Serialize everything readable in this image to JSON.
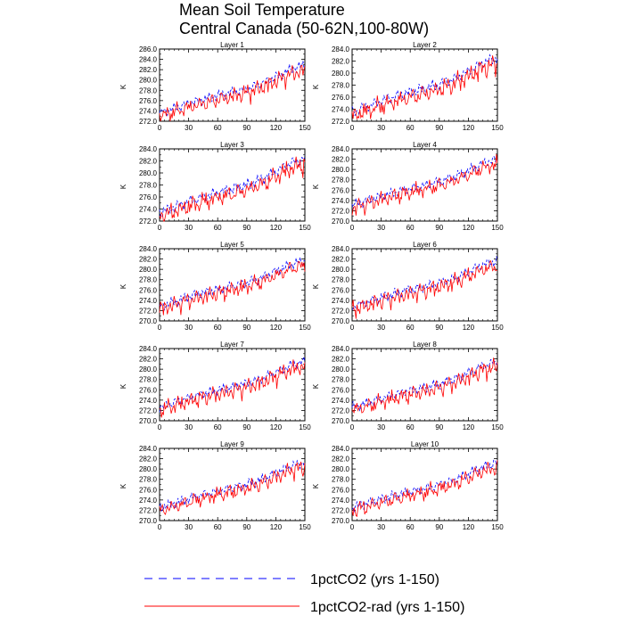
{
  "figure": {
    "title_line1": "Mean Soil Temperature",
    "title_line2": "Central Canada (50-62N,100-80W)"
  },
  "legend": [
    {
      "label": "1pctCO2 (yrs 1-150)",
      "color": "#0000ff",
      "dash": "dashed"
    },
    {
      "label": "1pctCO2-rad (yrs 1-150)",
      "color": "#ff0000",
      "dash": "solid"
    }
  ],
  "chart_data": [
    {
      "type": "line",
      "title": "Layer 1",
      "ylabel": "K",
      "xlim": [
        0,
        150
      ],
      "ylim": [
        272,
        286
      ],
      "xticks": [
        0,
        30,
        60,
        90,
        120,
        150
      ],
      "yticks": [
        272,
        274,
        276,
        278,
        280,
        282,
        284,
        286
      ],
      "series": [
        {
          "name": "1pctCO2 (yrs 1-150)",
          "color": "#0000ff",
          "x": [
            0,
            15,
            30,
            45,
            60,
            75,
            90,
            105,
            120,
            135,
            150
          ],
          "values": [
            273.6,
            274.5,
            275.4,
            276.2,
            277.0,
            277.6,
            278.3,
            279.2,
            280.6,
            282.0,
            283.0
          ]
        },
        {
          "name": "1pctCO2-rad (yrs 1-150)",
          "color": "#ff0000",
          "x": [
            0,
            15,
            30,
            45,
            60,
            75,
            90,
            105,
            120,
            135,
            150
          ],
          "values": [
            273.1,
            273.9,
            274.8,
            275.5,
            276.3,
            276.9,
            277.6,
            278.6,
            279.9,
            281.2,
            282.0
          ]
        }
      ]
    },
    {
      "type": "line",
      "title": "Layer 2",
      "ylabel": "K",
      "xlim": [
        0,
        150
      ],
      "ylim": [
        272,
        284
      ],
      "xticks": [
        0,
        30,
        60,
        90,
        120,
        150
      ],
      "yticks": [
        272,
        274,
        276,
        278,
        280,
        282,
        284
      ],
      "series": [
        {
          "name": "1pctCO2 (yrs 1-150)",
          "color": "#0000ff",
          "x": [
            0,
            15,
            30,
            45,
            60,
            75,
            90,
            105,
            120,
            135,
            150
          ],
          "values": [
            273.5,
            274.4,
            275.3,
            276.1,
            276.8,
            277.4,
            278.1,
            279.0,
            280.3,
            281.7,
            282.6
          ]
        },
        {
          "name": "1pctCO2-rad (yrs 1-150)",
          "color": "#ff0000",
          "x": [
            0,
            15,
            30,
            45,
            60,
            75,
            90,
            105,
            120,
            135,
            150
          ],
          "values": [
            273.0,
            273.8,
            274.7,
            275.4,
            276.1,
            276.7,
            277.4,
            278.3,
            279.6,
            280.9,
            281.7
          ]
        }
      ]
    },
    {
      "type": "line",
      "title": "Layer 3",
      "ylabel": "K",
      "xlim": [
        0,
        150
      ],
      "ylim": [
        272,
        284
      ],
      "xticks": [
        0,
        30,
        60,
        90,
        120,
        150
      ],
      "yticks": [
        272,
        274,
        276,
        278,
        280,
        282,
        284
      ],
      "series": [
        {
          "name": "1pctCO2 (yrs 1-150)",
          "color": "#0000ff",
          "x": [
            0,
            15,
            30,
            45,
            60,
            75,
            90,
            105,
            120,
            135,
            150
          ],
          "values": [
            273.4,
            274.3,
            275.2,
            276.0,
            276.7,
            277.3,
            278.0,
            278.9,
            280.2,
            281.6,
            282.4
          ]
        },
        {
          "name": "1pctCO2-rad (yrs 1-150)",
          "color": "#ff0000",
          "x": [
            0,
            15,
            30,
            45,
            60,
            75,
            90,
            105,
            120,
            135,
            150
          ],
          "values": [
            272.9,
            273.7,
            274.6,
            275.3,
            276.0,
            276.6,
            277.3,
            278.2,
            279.5,
            280.8,
            281.6
          ]
        }
      ]
    },
    {
      "type": "line",
      "title": "Layer 4",
      "ylabel": "K",
      "xlim": [
        0,
        150
      ],
      "ylim": [
        270,
        284
      ],
      "xticks": [
        0,
        30,
        60,
        90,
        120,
        150
      ],
      "yticks": [
        270,
        272,
        274,
        276,
        278,
        280,
        282,
        284
      ],
      "series": [
        {
          "name": "1pctCO2 (yrs 1-150)",
          "color": "#0000ff",
          "x": [
            0,
            15,
            30,
            45,
            60,
            75,
            90,
            105,
            120,
            135,
            150
          ],
          "values": [
            273.0,
            273.9,
            274.8,
            275.6,
            276.3,
            276.9,
            277.6,
            278.5,
            279.8,
            281.2,
            282.0
          ]
        },
        {
          "name": "1pctCO2-rad (yrs 1-150)",
          "color": "#ff0000",
          "x": [
            0,
            15,
            30,
            45,
            60,
            75,
            90,
            105,
            120,
            135,
            150
          ],
          "values": [
            272.6,
            273.4,
            274.3,
            275.0,
            275.7,
            276.3,
            277.0,
            277.9,
            279.1,
            280.4,
            281.2
          ]
        }
      ]
    },
    {
      "type": "line",
      "title": "Layer 5",
      "ylabel": "K",
      "xlim": [
        0,
        150
      ],
      "ylim": [
        270,
        284
      ],
      "xticks": [
        0,
        30,
        60,
        90,
        120,
        150
      ],
      "yticks": [
        270,
        272,
        274,
        276,
        278,
        280,
        282,
        284
      ],
      "series": [
        {
          "name": "1pctCO2 (yrs 1-150)",
          "color": "#0000ff",
          "x": [
            0,
            15,
            30,
            45,
            60,
            75,
            90,
            105,
            120,
            135,
            150
          ],
          "values": [
            272.8,
            273.7,
            274.6,
            275.4,
            276.1,
            276.7,
            277.4,
            278.3,
            279.6,
            280.9,
            281.7
          ]
        },
        {
          "name": "1pctCO2-rad (yrs 1-150)",
          "color": "#ff0000",
          "x": [
            0,
            15,
            30,
            45,
            60,
            75,
            90,
            105,
            120,
            135,
            150
          ],
          "values": [
            272.4,
            273.2,
            274.1,
            274.8,
            275.5,
            276.1,
            276.8,
            277.7,
            278.9,
            280.2,
            280.9
          ]
        }
      ]
    },
    {
      "type": "line",
      "title": "Layer 6",
      "ylabel": "K",
      "xlim": [
        0,
        150
      ],
      "ylim": [
        270,
        284
      ],
      "xticks": [
        0,
        30,
        60,
        90,
        120,
        150
      ],
      "yticks": [
        270,
        272,
        274,
        276,
        278,
        280,
        282,
        284
      ],
      "series": [
        {
          "name": "1pctCO2 (yrs 1-150)",
          "color": "#0000ff",
          "x": [
            0,
            15,
            30,
            45,
            60,
            75,
            90,
            105,
            120,
            135,
            150
          ],
          "values": [
            272.7,
            273.6,
            274.5,
            275.3,
            276.0,
            276.6,
            277.3,
            278.2,
            279.5,
            280.8,
            281.6
          ]
        },
        {
          "name": "1pctCO2-rad (yrs 1-150)",
          "color": "#ff0000",
          "x": [
            0,
            15,
            30,
            45,
            60,
            75,
            90,
            105,
            120,
            135,
            150
          ],
          "values": [
            272.3,
            273.1,
            274.0,
            274.7,
            275.4,
            276.0,
            276.7,
            277.6,
            278.8,
            280.1,
            280.8
          ]
        }
      ]
    },
    {
      "type": "line",
      "title": "Layer 7",
      "ylabel": "K",
      "xlim": [
        0,
        150
      ],
      "ylim": [
        270,
        284
      ],
      "xticks": [
        0,
        30,
        60,
        90,
        120,
        150
      ],
      "yticks": [
        270,
        272,
        274,
        276,
        278,
        280,
        282,
        284
      ],
      "series": [
        {
          "name": "1pctCO2 (yrs 1-150)",
          "color": "#0000ff",
          "x": [
            0,
            15,
            30,
            45,
            60,
            75,
            90,
            105,
            120,
            135,
            150
          ],
          "values": [
            272.6,
            273.5,
            274.4,
            275.2,
            275.9,
            276.5,
            277.2,
            278.1,
            279.4,
            280.7,
            281.5
          ]
        },
        {
          "name": "1pctCO2-rad (yrs 1-150)",
          "color": "#ff0000",
          "x": [
            0,
            15,
            30,
            45,
            60,
            75,
            90,
            105,
            120,
            135,
            150
          ],
          "values": [
            272.2,
            273.0,
            273.9,
            274.6,
            275.3,
            275.9,
            276.6,
            277.5,
            278.7,
            280.0,
            280.7
          ]
        }
      ]
    },
    {
      "type": "line",
      "title": "Layer 8",
      "ylabel": "K",
      "xlim": [
        0,
        150
      ],
      "ylim": [
        270,
        284
      ],
      "xticks": [
        0,
        30,
        60,
        90,
        120,
        150
      ],
      "yticks": [
        270,
        272,
        274,
        276,
        278,
        280,
        282,
        284
      ],
      "series": [
        {
          "name": "1pctCO2 (yrs 1-150)",
          "color": "#0000ff",
          "x": [
            0,
            15,
            30,
            45,
            60,
            75,
            90,
            105,
            120,
            135,
            150
          ],
          "values": [
            272.6,
            273.4,
            274.3,
            275.1,
            275.8,
            276.4,
            277.1,
            278.0,
            279.3,
            280.6,
            281.4
          ]
        },
        {
          "name": "1pctCO2-rad (yrs 1-150)",
          "color": "#ff0000",
          "x": [
            0,
            15,
            30,
            45,
            60,
            75,
            90,
            105,
            120,
            135,
            150
          ],
          "values": [
            272.2,
            272.9,
            273.8,
            274.5,
            275.2,
            275.8,
            276.5,
            277.4,
            278.6,
            279.9,
            280.6
          ]
        }
      ]
    },
    {
      "type": "line",
      "title": "Layer 9",
      "ylabel": "K",
      "xlim": [
        0,
        150
      ],
      "ylim": [
        270,
        284
      ],
      "xticks": [
        0,
        30,
        60,
        90,
        120,
        150
      ],
      "yticks": [
        270,
        272,
        274,
        276,
        278,
        280,
        282,
        284
      ],
      "series": [
        {
          "name": "1pctCO2 (yrs 1-150)",
          "color": "#0000ff",
          "x": [
            0,
            15,
            30,
            45,
            60,
            75,
            90,
            105,
            120,
            135,
            150
          ],
          "values": [
            272.5,
            273.3,
            274.2,
            275.0,
            275.7,
            276.3,
            277.0,
            277.9,
            279.2,
            280.5,
            281.3
          ]
        },
        {
          "name": "1pctCO2-rad (yrs 1-150)",
          "color": "#ff0000",
          "x": [
            0,
            15,
            30,
            45,
            60,
            75,
            90,
            105,
            120,
            135,
            150
          ],
          "values": [
            272.1,
            272.8,
            273.7,
            274.4,
            275.1,
            275.7,
            276.4,
            277.3,
            278.5,
            279.8,
            280.5
          ]
        }
      ]
    },
    {
      "type": "line",
      "title": "Layer 10",
      "ylabel": "K",
      "xlim": [
        0,
        150
      ],
      "ylim": [
        270,
        284
      ],
      "xticks": [
        0,
        30,
        60,
        90,
        120,
        150
      ],
      "yticks": [
        270,
        272,
        274,
        276,
        278,
        280,
        282,
        284
      ],
      "series": [
        {
          "name": "1pctCO2 (yrs 1-150)",
          "color": "#0000ff",
          "x": [
            0,
            15,
            30,
            45,
            60,
            75,
            90,
            105,
            120,
            135,
            150
          ],
          "values": [
            272.5,
            273.3,
            274.1,
            274.9,
            275.6,
            276.2,
            276.9,
            277.8,
            279.1,
            280.4,
            281.2
          ]
        },
        {
          "name": "1pctCO2-rad (yrs 1-150)",
          "color": "#ff0000",
          "x": [
            0,
            15,
            30,
            45,
            60,
            75,
            90,
            105,
            120,
            135,
            150
          ],
          "values": [
            272.1,
            272.8,
            273.6,
            274.3,
            275.0,
            275.6,
            276.3,
            277.2,
            278.4,
            279.7,
            280.4
          ]
        }
      ]
    }
  ]
}
